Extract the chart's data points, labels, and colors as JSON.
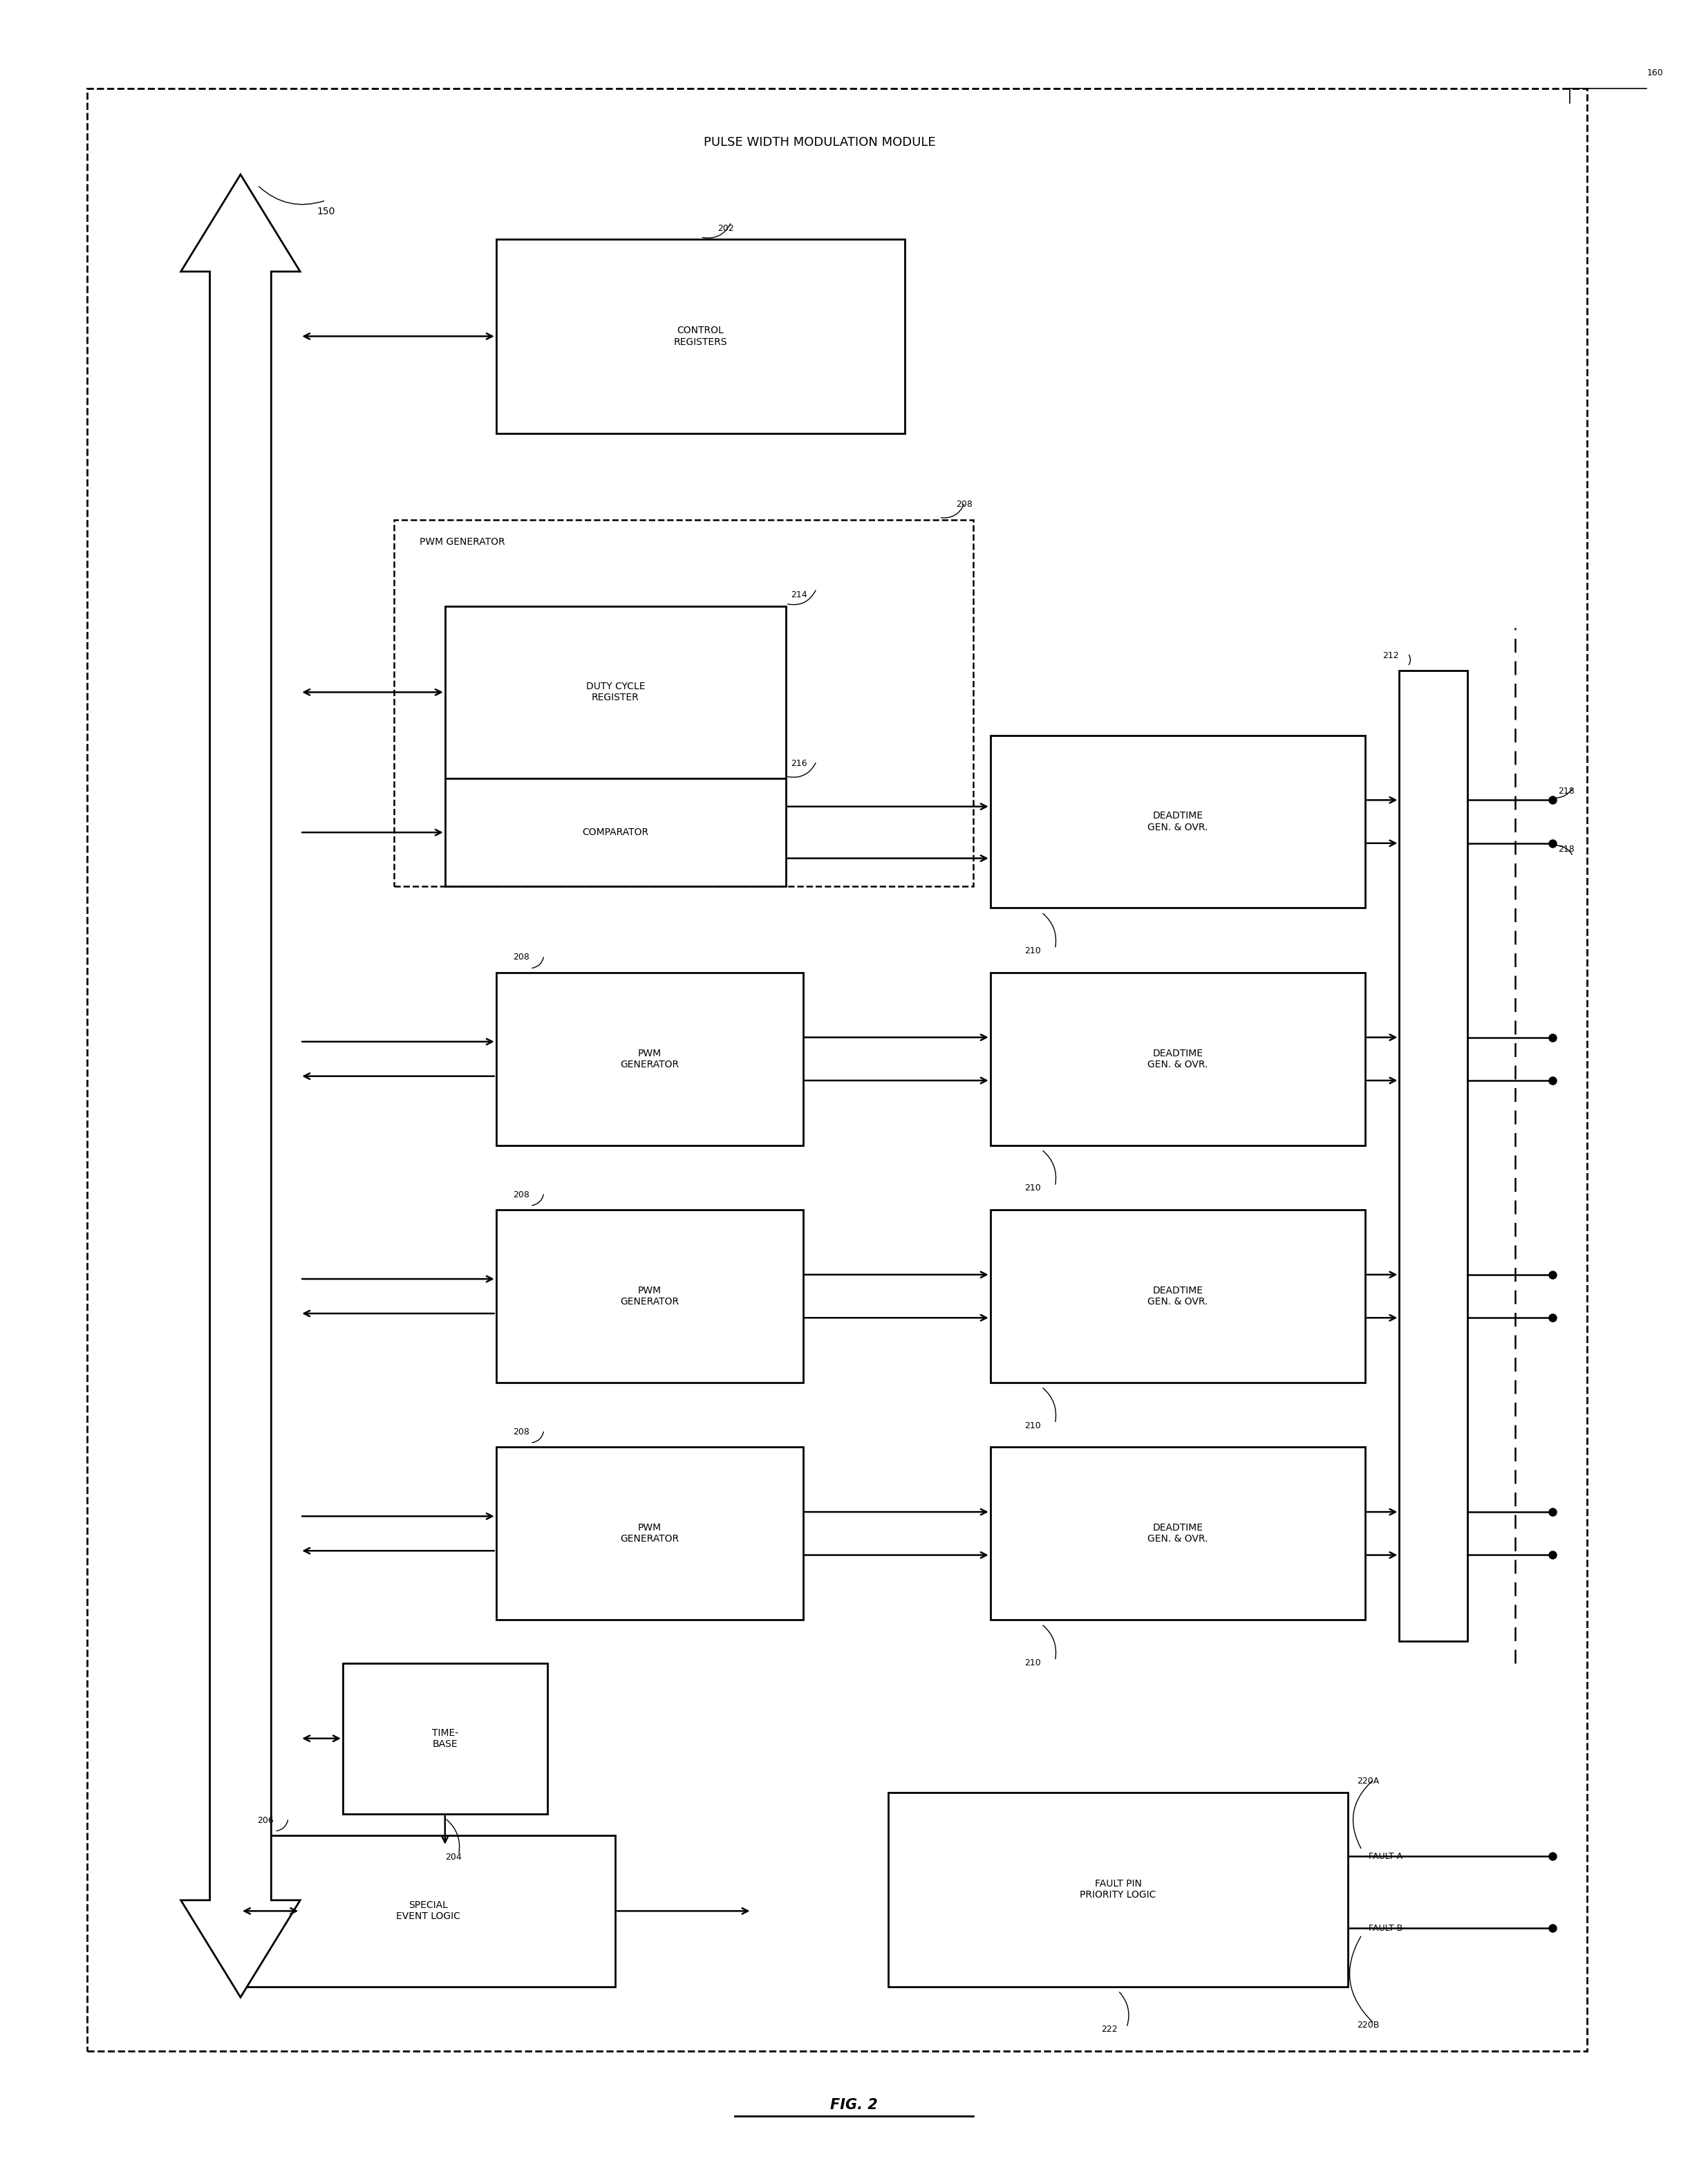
{
  "title": "PULSE WIDTH MODULATION MODULE",
  "fig_label": "FIG. 2",
  "bg_color": "#ffffff",
  "fig_width": 24.71,
  "fig_height": 31.26,
  "ref_160": "160",
  "ref_150": "150",
  "ref_202": "202",
  "ref_208": "208",
  "ref_214": "214",
  "ref_216": "216",
  "ref_210": "210",
  "ref_212": "212",
  "ref_204": "204",
  "ref_206": "206",
  "ref_218a": "218",
  "ref_218b": "218",
  "ref_220a": "220A",
  "ref_220b": "220B",
  "ref_222": "222",
  "label_cr": "CONTROL\nREGISTERS",
  "label_pwm_gen_outer": "PWM GENERATOR",
  "label_dcr": "DUTY CYCLE\nREGISTER",
  "label_comp": "COMPARATOR",
  "label_dt": "DEADTIME\nGEN. & OVR.",
  "label_pwm": "PWM\nGENERATOR",
  "label_tb": "TIME-\nBASE",
  "label_se": "SPECIAL\nEVENT LOGIC",
  "label_fp": "FAULT PIN\nPRIORITY LOGIC",
  "label_fa": "FAULT A",
  "label_fb": "FAULT B"
}
